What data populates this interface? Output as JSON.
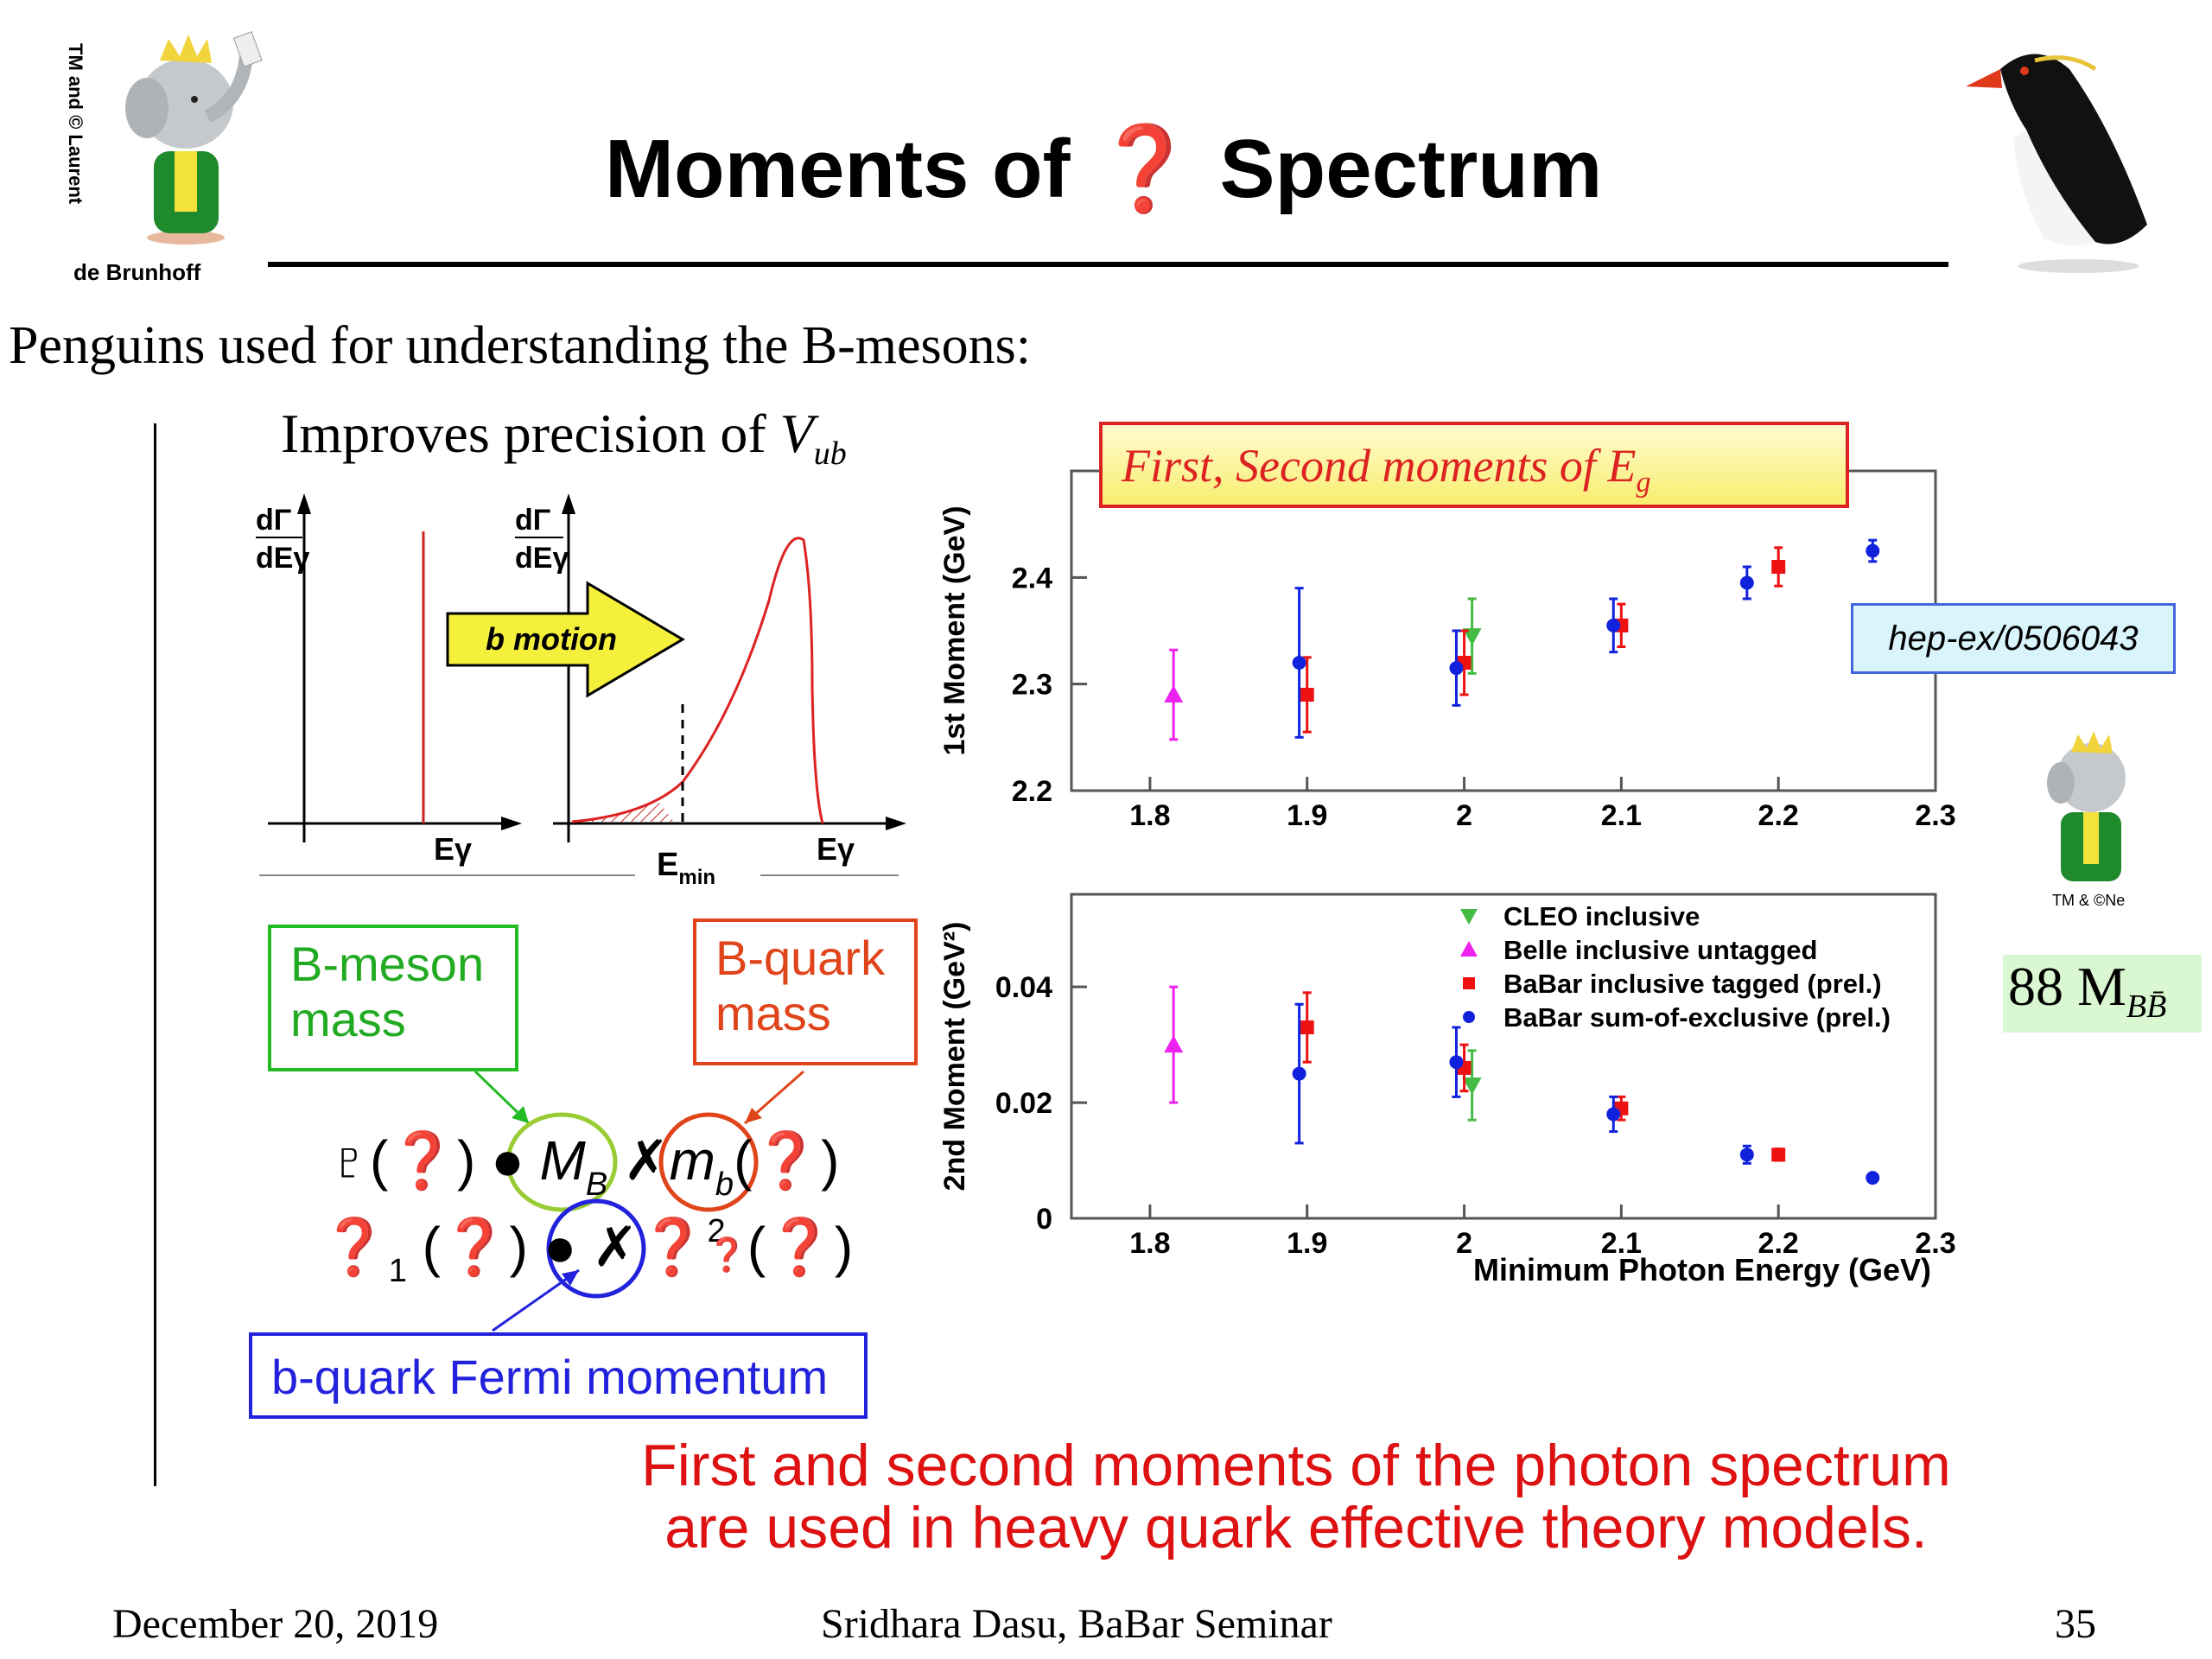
{
  "header": {
    "title": "Moments of ❓ Spectrum",
    "copyright_vertical": "TM and © Laurent",
    "copyright_bottom": "de Brunhoff",
    "small_copyright": "TM & ©Ne"
  },
  "subtitle": "Penguins used for understanding the B-mesons:",
  "improves": {
    "text": "Improves precision of",
    "symbol": "V",
    "sub": "ub"
  },
  "spectrum_sketch": {
    "left_ylabel_top": "dΓ",
    "left_ylabel_bottom": "dEγ",
    "right_ylabel_top": "dΓ",
    "right_ylabel_bottom": "dEγ",
    "left_xlabel": "Eγ",
    "right_xlabel": "Eγ",
    "emin_label": "E",
    "emin_sub": "min",
    "arrow_label": "b motion"
  },
  "callouts": {
    "bmeson": [
      "B-meson",
      "mass"
    ],
    "bquark": [
      "B-quark",
      "mass"
    ],
    "fermi": "b-quark Fermi momentum"
  },
  "equations": {
    "line1": [
      "♇(❓) ●",
      "M",
      "B",
      "✗",
      "m",
      "b",
      "(❓)"
    ],
    "line2": [
      "❓",
      "1",
      "(❓) ● ✗❓",
      "2",
      "❓",
      "(❓)"
    ]
  },
  "chart_data": [
    {
      "type": "scatter",
      "title": "First, Second moments of E",
      "title_sub": "g",
      "ylabel": "1st Moment (GeV)",
      "xlim": [
        1.75,
        2.3
      ],
      "ylim": [
        2.2,
        2.5
      ],
      "x_ticks": [
        "1.8",
        "1.9",
        "2",
        "2.1",
        "2.2",
        "2.3"
      ],
      "y_ticks": [
        "2.2",
        "2.3",
        "2.4"
      ],
      "annotation": "hep-ex/0506043",
      "series": [
        {
          "name": "CLEO inclusive",
          "color": "#44bb44",
          "marker": "triangle-down",
          "points": [
            [
              2.005,
              2.345,
              0.035
            ]
          ]
        },
        {
          "name": "Belle inclusive untagged",
          "color": "#ee22ee",
          "marker": "triangle-up",
          "points": [
            [
              1.815,
              2.29,
              0.042
            ]
          ]
        },
        {
          "name": "BaBar inclusive tagged (prel.)",
          "color": "#ee1111",
          "marker": "square",
          "points": [
            [
              1.9,
              2.29,
              0.035
            ],
            [
              2.0,
              2.32,
              0.03
            ],
            [
              2.1,
              2.355,
              0.02
            ],
            [
              2.2,
              2.41,
              0.018
            ]
          ]
        },
        {
          "name": "BaBar sum-of-exclusive (prel.)",
          "color": "#1122dd",
          "marker": "circle",
          "points": [
            [
              1.895,
              2.32,
              0.07
            ],
            [
              1.995,
              2.315,
              0.035
            ],
            [
              2.095,
              2.355,
              0.025
            ],
            [
              2.18,
              2.395,
              0.015
            ],
            [
              2.26,
              2.425,
              0.01
            ]
          ]
        }
      ]
    },
    {
      "type": "scatter",
      "ylabel": "2nd Moment (GeV²)",
      "xlabel": "Minimum Photon Energy (GeV)",
      "xlim": [
        1.75,
        2.3
      ],
      "ylim": [
        0,
        0.056
      ],
      "x_ticks": [
        "1.8",
        "1.9",
        "2",
        "2.1",
        "2.2",
        "2.3"
      ],
      "y_ticks": [
        "0",
        "0.02",
        "0.04"
      ],
      "legend_position": "top-right",
      "series": [
        {
          "name": "CLEO inclusive",
          "color": "#44bb44",
          "marker": "triangle-down",
          "points": [
            [
              2.005,
              0.023,
              0.006
            ]
          ]
        },
        {
          "name": "Belle inclusive untagged",
          "color": "#ee22ee",
          "marker": "triangle-up",
          "points": [
            [
              1.815,
              0.03,
              0.01
            ]
          ]
        },
        {
          "name": "BaBar inclusive tagged (prel.)",
          "color": "#ee1111",
          "marker": "square",
          "points": [
            [
              1.9,
              0.033,
              0.006
            ],
            [
              2.0,
              0.026,
              0.004
            ],
            [
              2.1,
              0.019,
              0.002
            ],
            [
              2.2,
              0.011,
              0.001
            ]
          ]
        },
        {
          "name": "BaBar sum-of-exclusive (prel.)",
          "color": "#1122dd",
          "marker": "circle",
          "points": [
            [
              1.895,
              0.025,
              0.012
            ],
            [
              1.995,
              0.027,
              0.006
            ],
            [
              2.095,
              0.018,
              0.003
            ],
            [
              2.18,
              0.011,
              0.0015
            ],
            [
              2.26,
              0.007,
              0.0005
            ]
          ]
        }
      ]
    }
  ],
  "mbb": {
    "text": "88 M",
    "sub": "BB̄"
  },
  "bottom_note": [
    "First and second moments of the photon spectrum",
    "are used in heavy quark effective theory models."
  ],
  "footer": {
    "date": "December 20, 2019",
    "author": "Sridhara Dasu, BaBar Seminar",
    "page": "35"
  }
}
